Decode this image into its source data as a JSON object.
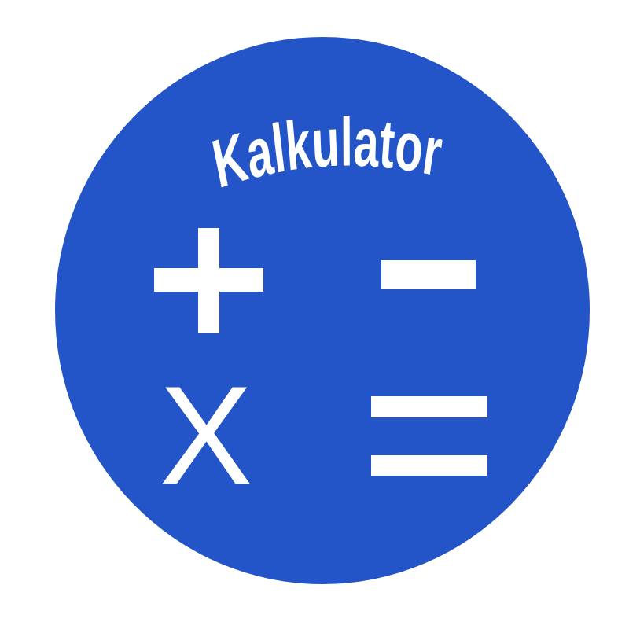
{
  "app": {
    "title": "Kalkulator",
    "colors": {
      "background": "#ffffff",
      "circle": "#2355c8",
      "symbols": "#ffffff"
    }
  },
  "symbols": [
    {
      "name": "plus",
      "icon": "plus-icon"
    },
    {
      "name": "minus",
      "icon": "minus-icon"
    },
    {
      "name": "multiply",
      "glyph": "X",
      "icon": "multiply-icon"
    },
    {
      "name": "equals",
      "icon": "equals-icon"
    }
  ]
}
